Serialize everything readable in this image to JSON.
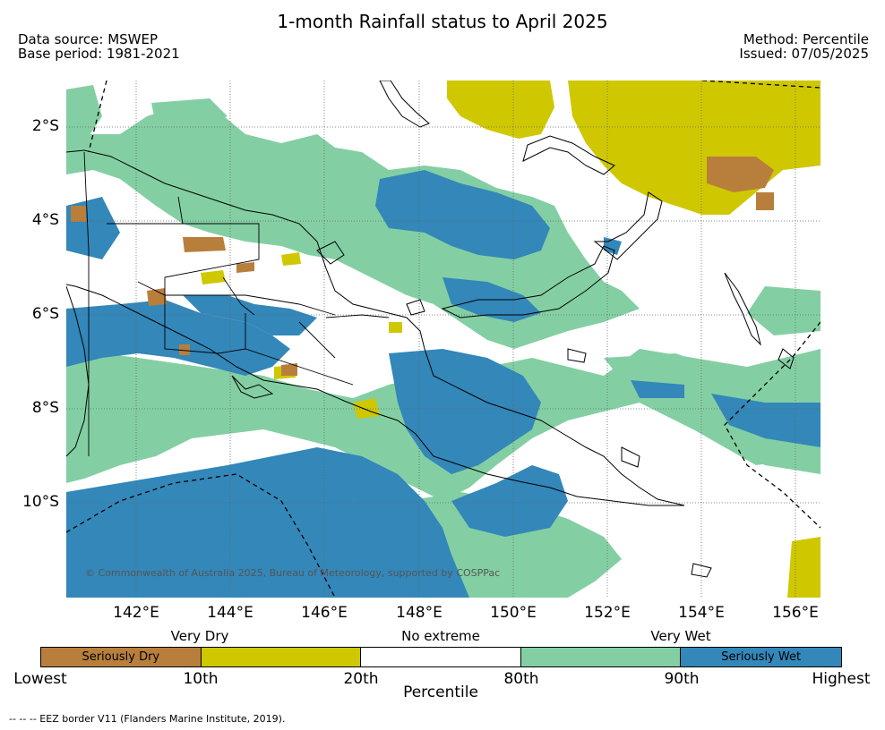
{
  "header": {
    "title": "1-month Rainfall status to April 2025",
    "source": "Data source: MSWEP",
    "base_period": "Base period: 1981-2021",
    "method": "Method: Percentile",
    "issued": "Issued: 07/05/2025"
  },
  "map": {
    "lat_labels": [
      "2°S",
      "4°S",
      "6°S",
      "8°S",
      "10°S"
    ],
    "lon_labels": [
      "142°E",
      "144°E",
      "146°E",
      "148°E",
      "150°E",
      "152°E",
      "154°E",
      "156°E"
    ],
    "copyright": "© Commonwealth of Australia 2025, Bureau of Meteorology, supported by COSPPac",
    "colors": {
      "seriously_dry": "#b87f3c",
      "very_dry": "#cfc800",
      "no_extreme": "#ffffff",
      "very_wet": "#83cfa3",
      "seriously_wet": "#3387b9"
    }
  },
  "legend": {
    "group_labels": {
      "very_dry": "Very Dry",
      "no_extreme": "No extreme",
      "very_wet": "Very Wet"
    },
    "segments": [
      {
        "label": "Seriously Dry",
        "color": "#b87f3c"
      },
      {
        "label": "",
        "color": "#cfc800"
      },
      {
        "label": "",
        "color": "#ffffff"
      },
      {
        "label": "",
        "color": "#83cfa3"
      },
      {
        "label": "Seriously Wet",
        "color": "#3387b9"
      }
    ],
    "ticks": [
      "Lowest",
      "10th",
      "20th",
      "80th",
      "90th",
      "Highest"
    ],
    "axis_label": "Percentile"
  },
  "footnote": "-- -- -- EEZ border V11 (Flanders Marine Institute, 2019)."
}
